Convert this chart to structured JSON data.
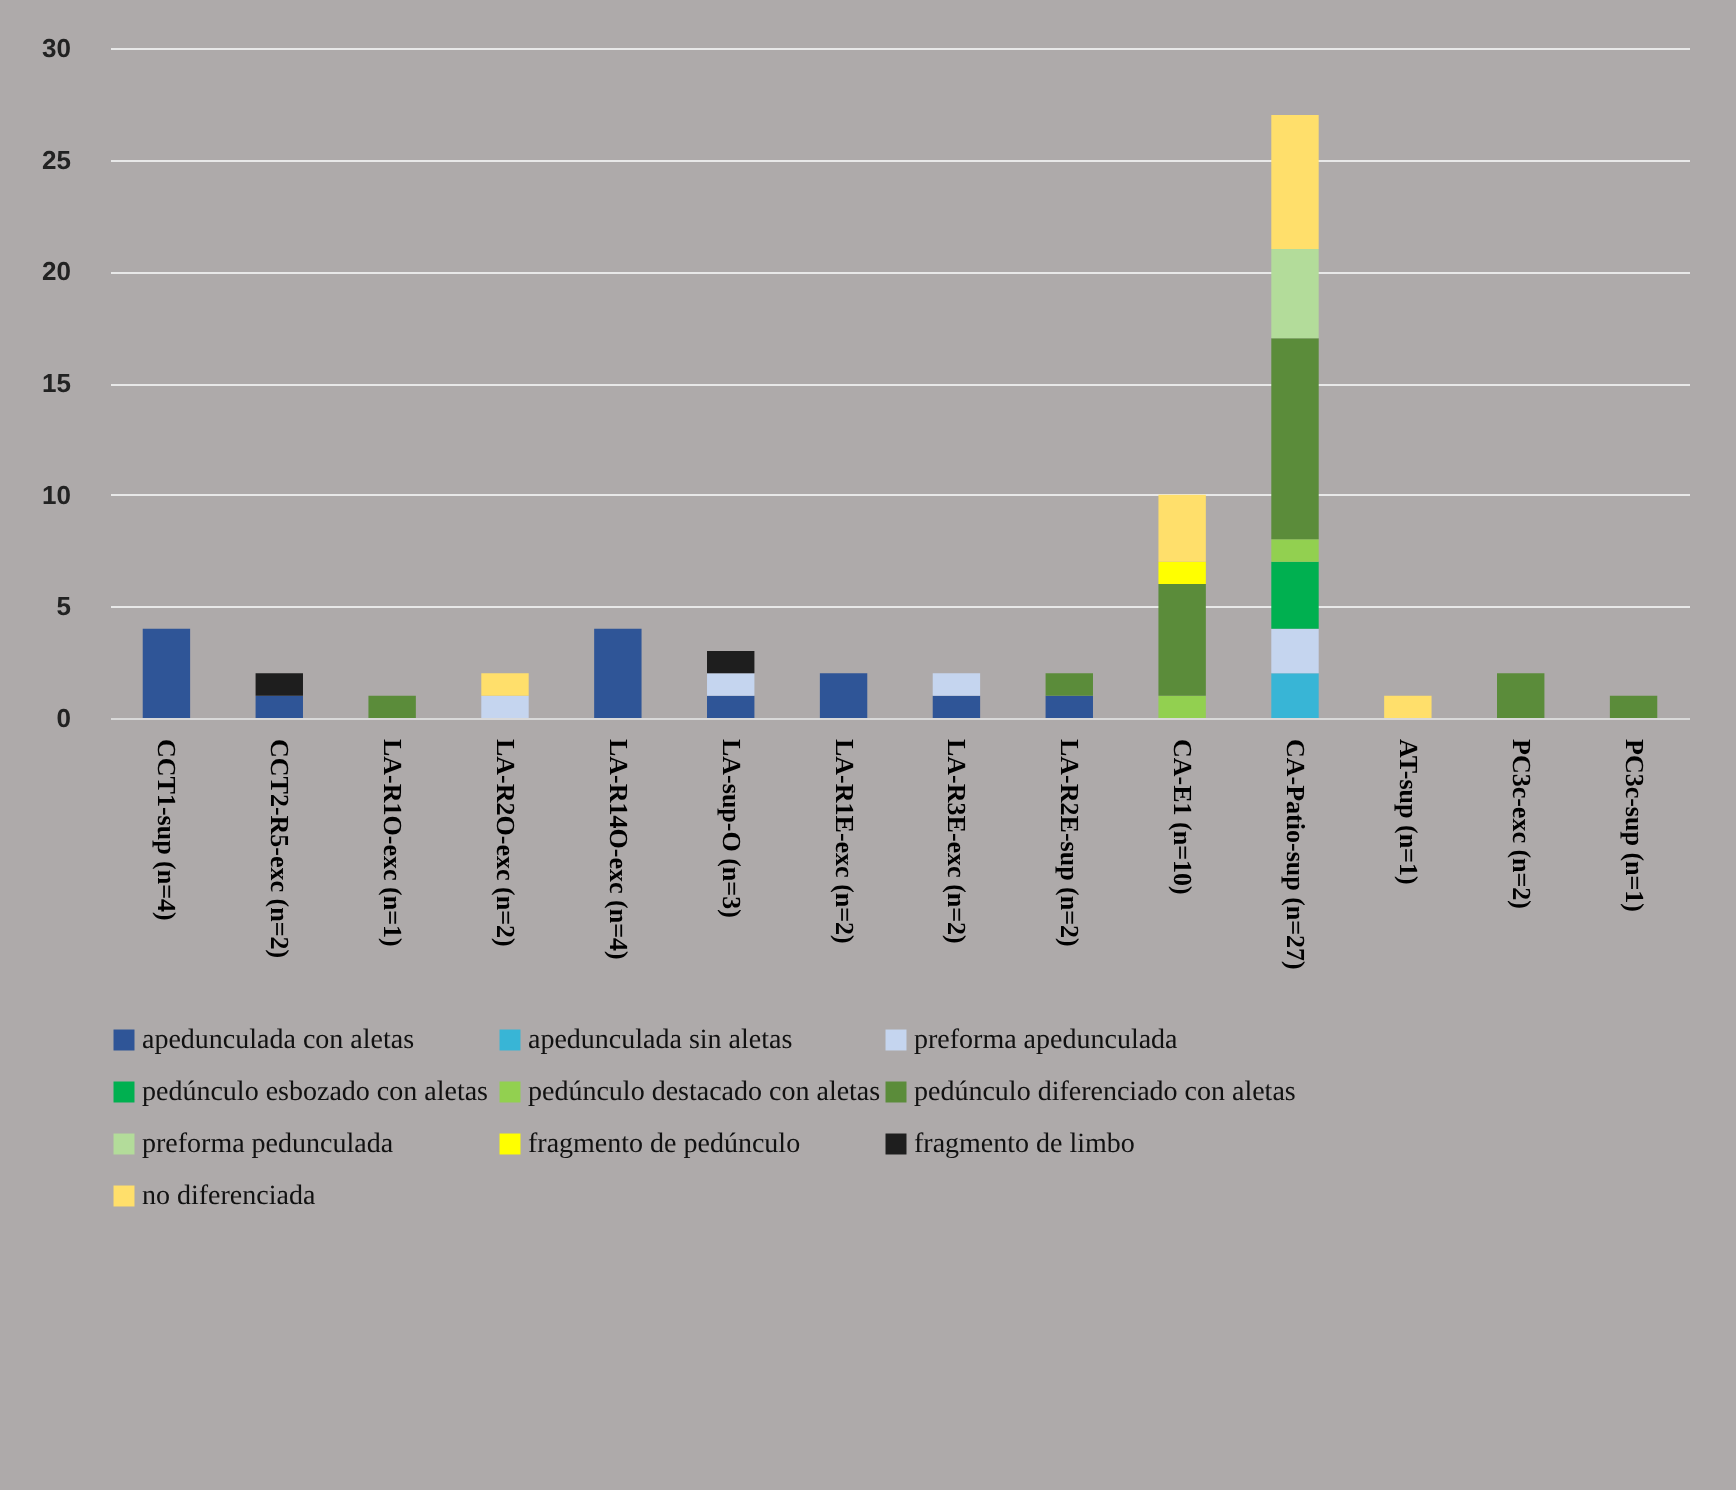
{
  "chart_data": {
    "type": "bar",
    "stacked": true,
    "categories": [
      "CCT1-sup (n=4)",
      "CCT2-R5-exc (n=2)",
      "LA-R1O-exc (n=1)",
      "LA-R2O-exc (n=2)",
      "LA-R14O-exc (n=4)",
      "LA-sup-O (n=3)",
      "LA-R1E-exc (n=2)",
      "LA-R3E-exc (n=2)",
      "LA-R2E-sup (n=2)",
      "CA-E1 (n=10)",
      "CA-Patio-sup (n=27)",
      "AT-sup (n=1)",
      "PC3c-exc (n=2)",
      "PC3c-sup (n=1)"
    ],
    "series": [
      {
        "name": "apedunculada con aletas",
        "color": "#2f5597",
        "values": [
          4,
          1,
          null,
          null,
          4,
          1,
          2,
          1,
          1,
          null,
          null,
          null,
          null,
          null
        ]
      },
      {
        "name": "apedunculada sin aletas",
        "color": "#38b5d6",
        "values": [
          null,
          null,
          null,
          null,
          null,
          null,
          null,
          null,
          null,
          null,
          2,
          null,
          null,
          null
        ]
      },
      {
        "name": "preforma apedunculada",
        "color": "#c5d5ef",
        "values": [
          null,
          null,
          null,
          1,
          null,
          1,
          null,
          1,
          null,
          null,
          2,
          null,
          null,
          null
        ]
      },
      {
        "name": "pedúnculo esbozado con  aletas",
        "color": "#00b050",
        "values": [
          null,
          null,
          null,
          null,
          null,
          null,
          null,
          null,
          null,
          null,
          3,
          null,
          null,
          null
        ]
      },
      {
        "name": "pedúnculo destacado con aletas",
        "color": "#92d050",
        "values": [
          null,
          null,
          null,
          null,
          null,
          null,
          null,
          null,
          null,
          1,
          1,
          null,
          null,
          null
        ]
      },
      {
        "name": "pedúnculo diferenciado con aletas",
        "color": "#5b8c3a",
        "values": [
          null,
          null,
          1,
          null,
          null,
          null,
          null,
          null,
          1,
          5,
          9,
          null,
          2,
          1
        ]
      },
      {
        "name": "preforma pedunculada",
        "color": "#b3dc9a",
        "values": [
          null,
          null,
          null,
          null,
          null,
          null,
          null,
          null,
          null,
          null,
          4,
          null,
          null,
          null
        ]
      },
      {
        "name": "fragmento de pedúnculo",
        "color": "#ffff00",
        "values": [
          null,
          null,
          null,
          null,
          null,
          null,
          null,
          null,
          null,
          1,
          null,
          null,
          null,
          null
        ]
      },
      {
        "name": "fragmento de limbo",
        "color": "#1e1e1e",
        "values": [
          null,
          1,
          null,
          null,
          null,
          1,
          null,
          null,
          null,
          null,
          null,
          null,
          null,
          null
        ]
      },
      {
        "name": "no diferenciada",
        "color": "#ffdf6b",
        "values": [
          null,
          null,
          null,
          1,
          null,
          null,
          null,
          null,
          null,
          3,
          6,
          1,
          null,
          null
        ]
      }
    ],
    "ylim": [
      0,
      30
    ],
    "yticks": [
      0,
      5,
      10,
      15,
      20,
      25,
      30
    ],
    "grid": "y",
    "legend": "bottom"
  }
}
